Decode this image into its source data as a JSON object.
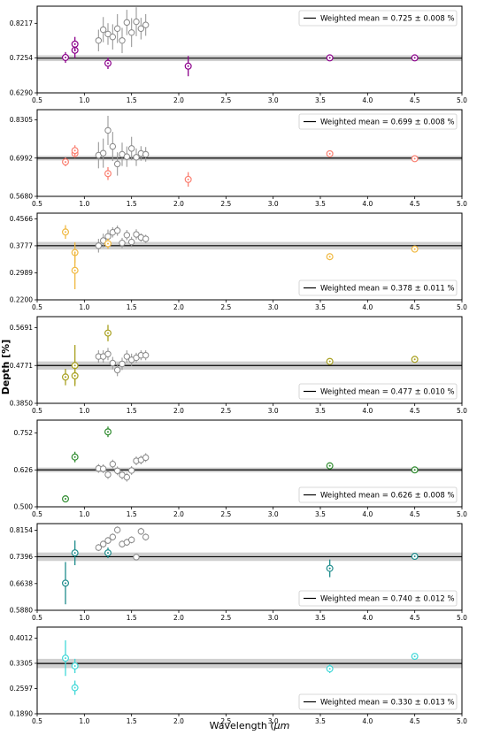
{
  "chart_data": {
    "type": "scatter",
    "shared_x": {
      "label": "Wavelength (",
      "label_unit": "μm",
      "ticks": [
        "0.5",
        "1.0",
        "1.5",
        "2.0",
        "2.5",
        "3.0",
        "3.5",
        "4.0",
        "4.5",
        "5.0"
      ],
      "xlim": [
        0.5,
        5.0
      ]
    },
    "ylabel": "Depth [%]",
    "grey_x": [
      1.15,
      1.2,
      1.25,
      1.3,
      1.35,
      1.4,
      1.45,
      1.5,
      1.55,
      1.6,
      1.65
    ],
    "panels": [
      {
        "color": "#8B008B",
        "ylim": [
          0.629,
          0.869
        ],
        "yticks": [
          "0.8217",
          "0.7254",
          "0.6290"
        ],
        "ytick_values": [
          0.8217,
          0.7254,
          0.629
        ],
        "mean": 0.725,
        "band": 0.008,
        "legend_text": "Weighted mean = 0.725 ± 0.008 %",
        "legend_pos": "top-right",
        "points": [
          {
            "x": 0.8,
            "y": 0.727,
            "err": 0.015
          },
          {
            "x": 0.9,
            "y": 0.747,
            "err": 0.022
          },
          {
            "x": 0.9,
            "y": 0.764,
            "err": 0.02
          },
          {
            "x": 1.25,
            "y": 0.711,
            "err": 0.016
          },
          {
            "x": 2.1,
            "y": 0.703,
            "err": 0.028
          },
          {
            "x": 3.6,
            "y": 0.726,
            "err": 0.005
          },
          {
            "x": 4.5,
            "y": 0.726,
            "err": 0.005
          }
        ],
        "grey": [
          {
            "y": 0.774,
            "err": 0.03
          },
          {
            "y": 0.804,
            "err": 0.035
          },
          {
            "y": 0.792,
            "err": 0.03
          },
          {
            "y": 0.784,
            "err": 0.035
          },
          {
            "y": 0.807,
            "err": 0.04
          },
          {
            "y": 0.774,
            "err": 0.035
          },
          {
            "y": 0.824,
            "err": 0.035
          },
          {
            "y": 0.796,
            "err": 0.04
          },
          {
            "y": 0.826,
            "err": 0.04
          },
          {
            "y": 0.807,
            "err": 0.03
          },
          {
            "y": 0.817,
            "err": 0.03
          }
        ]
      },
      {
        "color": "#FA8072",
        "ylim": [
          0.568,
          0.865
        ],
        "yticks": [
          "0.8305",
          "0.6992",
          "0.5680"
        ],
        "ytick_values": [
          0.8305,
          0.6992,
          0.568
        ],
        "mean": 0.699,
        "band": 0.008,
        "legend_text": "Weighted mean = 0.699 ± 0.008 %",
        "legend_pos": "top-right",
        "points": [
          {
            "x": 0.8,
            "y": 0.686,
            "err": 0.015
          },
          {
            "x": 0.9,
            "y": 0.715,
            "err": 0.015
          },
          {
            "x": 0.9,
            "y": 0.725,
            "err": 0.018
          },
          {
            "x": 1.25,
            "y": 0.646,
            "err": 0.022
          },
          {
            "x": 2.1,
            "y": 0.626,
            "err": 0.025
          },
          {
            "x": 3.6,
            "y": 0.714,
            "err": 0.006
          },
          {
            "x": 4.5,
            "y": 0.697,
            "err": 0.006
          }
        ],
        "grey": [
          {
            "y": 0.709,
            "err": 0.045
          },
          {
            "y": 0.716,
            "err": 0.05
          },
          {
            "y": 0.794,
            "err": 0.05
          },
          {
            "y": 0.739,
            "err": 0.05
          },
          {
            "y": 0.679,
            "err": 0.04
          },
          {
            "y": 0.712,
            "err": 0.04
          },
          {
            "y": 0.704,
            "err": 0.035
          },
          {
            "y": 0.732,
            "err": 0.04
          },
          {
            "y": 0.702,
            "err": 0.03
          },
          {
            "y": 0.715,
            "err": 0.025
          },
          {
            "y": 0.712,
            "err": 0.025
          }
        ]
      },
      {
        "color": "#F0B840",
        "ylim": [
          0.22,
          0.473
        ],
        "yticks": [
          "0.4566",
          "0.3777",
          "0.2989",
          "0.2200"
        ],
        "ytick_values": [
          0.4566,
          0.3777,
          0.2989,
          0.22
        ],
        "mean": 0.378,
        "band": 0.011,
        "legend_text": "Weighted mean = 0.378 ± 0.011 %",
        "legend_pos": "bottom-right",
        "points": [
          {
            "x": 0.8,
            "y": 0.418,
            "err": 0.02
          },
          {
            "x": 0.9,
            "y": 0.358,
            "err": 0.03
          },
          {
            "x": 0.9,
            "y": 0.306,
            "err": 0.055
          },
          {
            "x": 1.25,
            "y": 0.384,
            "err": 0.015
          },
          {
            "x": 3.6,
            "y": 0.346,
            "err": 0.01
          },
          {
            "x": 4.5,
            "y": 0.368,
            "err": 0.005
          }
        ],
        "grey": [
          {
            "y": 0.378,
            "err": 0.02
          },
          {
            "y": 0.393,
            "err": 0.02
          },
          {
            "y": 0.405,
            "err": 0.02
          },
          {
            "y": 0.417,
            "err": 0.015
          },
          {
            "y": 0.422,
            "err": 0.015
          },
          {
            "y": 0.386,
            "err": 0.015
          },
          {
            "y": 0.409,
            "err": 0.015
          },
          {
            "y": 0.389,
            "err": 0.015
          },
          {
            "y": 0.411,
            "err": 0.015
          },
          {
            "y": 0.402,
            "err": 0.012
          },
          {
            "y": 0.398,
            "err": 0.012
          }
        ]
      },
      {
        "color": "#A8A020",
        "ylim": [
          0.385,
          0.596
        ],
        "yticks": [
          "0.5691",
          "0.4771",
          "0.3850"
        ],
        "ytick_values": [
          0.5691,
          0.4771,
          0.385
        ],
        "mean": 0.477,
        "band": 0.01,
        "legend_text": "Weighted mean = 0.477 ± 0.010 %",
        "legend_pos": "bottom-right",
        "points": [
          {
            "x": 0.8,
            "y": 0.449,
            "err": 0.02
          },
          {
            "x": 0.9,
            "y": 0.477,
            "err": 0.05
          },
          {
            "x": 0.9,
            "y": 0.452,
            "err": 0.02
          },
          {
            "x": 1.25,
            "y": 0.556,
            "err": 0.02
          },
          {
            "x": 3.6,
            "y": 0.487,
            "err": 0.006
          },
          {
            "x": 4.5,
            "y": 0.492,
            "err": 0.006
          }
        ],
        "grey": [
          {
            "y": 0.499,
            "err": 0.015
          },
          {
            "y": 0.499,
            "err": 0.015
          },
          {
            "y": 0.505,
            "err": 0.015
          },
          {
            "y": 0.483,
            "err": 0.015
          },
          {
            "y": 0.466,
            "err": 0.015
          },
          {
            "y": 0.481,
            "err": 0.015
          },
          {
            "y": 0.499,
            "err": 0.015
          },
          {
            "y": 0.491,
            "err": 0.015
          },
          {
            "y": 0.496,
            "err": 0.012
          },
          {
            "y": 0.502,
            "err": 0.012
          },
          {
            "y": 0.502,
            "err": 0.012
          }
        ]
      },
      {
        "color": "#2E8B2E",
        "ylim": [
          0.5,
          0.796
        ],
        "yticks": [
          "0.752",
          "0.626",
          "0.500"
        ],
        "ytick_values": [
          0.752,
          0.626,
          0.5
        ],
        "mean": 0.626,
        "band": 0.008,
        "legend_text": "Weighted mean = 0.626 ± 0.008 %",
        "legend_pos": "bottom-right",
        "points": [
          {
            "x": 0.8,
            "y": 0.527,
            "err": 0.012
          },
          {
            "x": 0.9,
            "y": 0.67,
            "err": 0.018
          },
          {
            "x": 1.25,
            "y": 0.756,
            "err": 0.018
          },
          {
            "x": 3.6,
            "y": 0.64,
            "err": 0.01
          },
          {
            "x": 4.5,
            "y": 0.626,
            "err": 0.006
          }
        ],
        "grey": [
          {
            "y": 0.631,
            "err": 0.015
          },
          {
            "y": 0.63,
            "err": 0.015
          },
          {
            "y": 0.61,
            "err": 0.015
          },
          {
            "y": 0.646,
            "err": 0.015
          },
          {
            "y": 0.623,
            "err": 0.015
          },
          {
            "y": 0.609,
            "err": 0.015
          },
          {
            "y": 0.601,
            "err": 0.015
          },
          {
            "y": 0.624,
            "err": 0.015
          },
          {
            "y": 0.657,
            "err": 0.015
          },
          {
            "y": 0.66,
            "err": 0.015
          },
          {
            "y": 0.668,
            "err": 0.015
          }
        ]
      },
      {
        "color": "#1E8C8C",
        "ylim": [
          0.588,
          0.834
        ],
        "yticks": [
          "0.8154",
          "0.7396",
          "0.6638",
          "0.5880"
        ],
        "ytick_values": [
          0.8154,
          0.7396,
          0.6638,
          0.588
        ],
        "mean": 0.74,
        "band": 0.012,
        "legend_text": "Weighted mean = 0.740 ± 0.012 %",
        "legend_pos": "bottom-right",
        "points": [
          {
            "x": 0.8,
            "y": 0.665,
            "err": 0.06
          },
          {
            "x": 0.9,
            "y": 0.751,
            "err": 0.035
          },
          {
            "x": 1.25,
            "y": 0.751,
            "err": 0.015
          },
          {
            "x": 3.6,
            "y": 0.707,
            "err": 0.025
          },
          {
            "x": 4.5,
            "y": 0.741,
            "err": 0.006
          }
        ],
        "grey": [
          {
            "y": 0.766,
            "err": 0.01
          },
          {
            "y": 0.776,
            "err": 0.01
          },
          {
            "y": 0.786,
            "err": 0.01
          },
          {
            "y": 0.796,
            "err": 0.01
          },
          {
            "y": 0.816,
            "err": 0.01
          },
          {
            "y": 0.776,
            "err": 0.01
          },
          {
            "y": 0.781,
            "err": 0.01
          },
          {
            "y": 0.788,
            "err": 0.01
          },
          {
            "y": 0.739,
            "err": 0.006
          },
          {
            "y": 0.812,
            "err": 0.01
          },
          {
            "y": 0.796,
            "err": 0.01
          }
        ]
      },
      {
        "color": "#40D8D8",
        "ylim": [
          0.189,
          0.432
        ],
        "yticks": [
          "0.4012",
          "0.3305",
          "0.2597",
          "0.1890"
        ],
        "ytick_values": [
          0.4012,
          0.3305,
          0.2597,
          0.189
        ],
        "mean": 0.33,
        "band": 0.013,
        "legend_text": "Weighted mean = 0.330 ± 0.013 %",
        "legend_pos": "bottom-right",
        "points": [
          {
            "x": 0.8,
            "y": 0.345,
            "err": 0.05
          },
          {
            "x": 0.9,
            "y": 0.323,
            "err": 0.02
          },
          {
            "x": 0.9,
            "y": 0.262,
            "err": 0.02
          },
          {
            "x": 3.6,
            "y": 0.315,
            "err": 0.012
          },
          {
            "x": 4.5,
            "y": 0.35,
            "err": 0.008
          }
        ],
        "grey": []
      }
    ]
  }
}
